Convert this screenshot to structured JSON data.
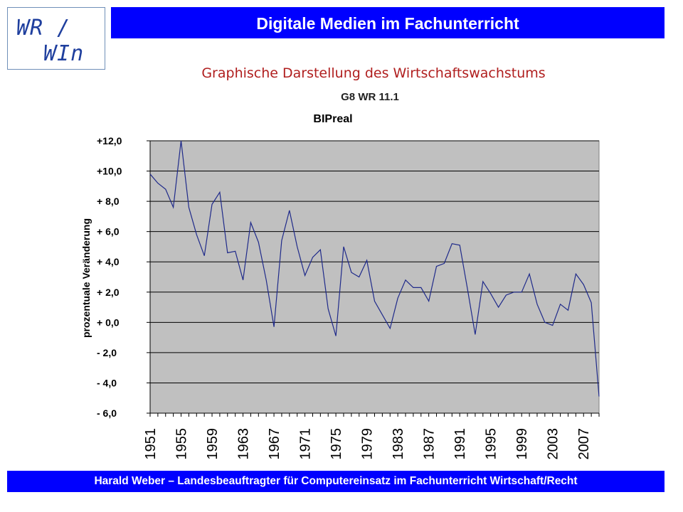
{
  "logo": {
    "line1": "WR /",
    "line2": "WIn"
  },
  "header": {
    "title": "Digitale Medien im Fachunterricht"
  },
  "slide": {
    "subtitle": "Graphische Darstellung des Wirtschaftswachstums",
    "course": "G8 WR 11.1"
  },
  "footer": {
    "text": "Harald Weber – Landesbeauftragter für Computereinsatz im Fachunterricht Wirtschaft/Recht"
  },
  "colors": {
    "header_bg": "#0000ff",
    "subtitle": "#b01e1e",
    "plot_bg": "#c0c0c0",
    "line": "#1f2a8a"
  },
  "chart_data": {
    "type": "line",
    "title": "BIPreal",
    "xlabel": "",
    "ylabel": "prozentuale Veränderung",
    "ylim": [
      -6,
      12
    ],
    "ytick_values": [
      12,
      10,
      8,
      6,
      4,
      2,
      0,
      -2,
      -4,
      -6
    ],
    "ytick_labels": [
      "+12,0",
      "+10,0",
      "+ 8,0",
      "+ 6,0",
      "+ 4,0",
      "+ 2,0",
      "+ 0,0",
      "- 2,0",
      "- 4,0",
      "- 6,0"
    ],
    "xtick_labels": [
      "1951",
      "1955",
      "1959",
      "1963",
      "1967",
      "1971",
      "1975",
      "1979",
      "1983",
      "1987",
      "1991",
      "1995",
      "1999",
      "2003",
      "2007"
    ],
    "grid": true,
    "series": [
      {
        "x": [
          1951,
          1952,
          1953,
          1954,
          1955,
          1956,
          1957,
          1958,
          1959,
          1960,
          1961,
          1962,
          1963,
          1964,
          1965,
          1966,
          1967,
          1968,
          1969,
          1970,
          1971,
          1972,
          1973,
          1974,
          1975,
          1976,
          1977,
          1978,
          1979,
          1980,
          1981,
          1982,
          1983,
          1984,
          1985,
          1986,
          1987,
          1988,
          1989,
          1990,
          1991,
          1992,
          1993,
          1994,
          1995,
          1996,
          1997,
          1998,
          1999,
          2000,
          2001,
          2002,
          2003,
          2004,
          2005,
          2006,
          2007,
          2008,
          2009
        ],
        "values": [
          9.8,
          9.2,
          8.8,
          7.6,
          12.0,
          7.6,
          5.8,
          4.4,
          7.8,
          8.6,
          4.6,
          4.7,
          2.8,
          6.6,
          5.3,
          2.8,
          -0.3,
          5.4,
          7.4,
          5.0,
          3.1,
          4.3,
          4.8,
          0.9,
          -0.9,
          5.0,
          3.3,
          3.0,
          4.1,
          1.4,
          0.5,
          -0.4,
          1.6,
          2.8,
          2.3,
          2.3,
          1.4,
          3.7,
          3.9,
          5.2,
          5.1,
          2.2,
          -0.8,
          2.7,
          1.9,
          1.0,
          1.8,
          2.0,
          2.0,
          3.2,
          1.2,
          0.0,
          -0.2,
          1.2,
          0.8,
          3.2,
          2.5,
          1.3,
          -4.9
        ]
      }
    ]
  }
}
